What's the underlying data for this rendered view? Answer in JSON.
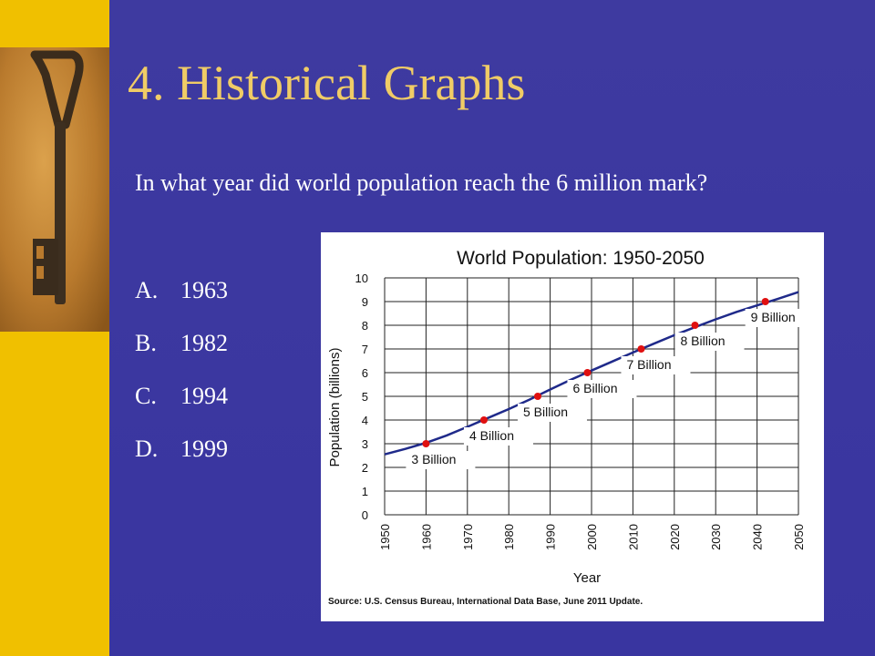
{
  "slide": {
    "title": "4.  Historical Graphs",
    "question": "In what year did world population reach the 6 million mark?",
    "choices": [
      {
        "letter": "A.",
        "text": "1963"
      },
      {
        "letter": "B.",
        "text": "1982"
      },
      {
        "letter": "C.",
        "text": "1994"
      },
      {
        "letter": "D.",
        "text": "1999"
      }
    ],
    "image": {
      "icon": "old-key-icon"
    }
  },
  "colors": {
    "background": "#3b37a0",
    "accent_strip": "#f0c000",
    "title": "#f0cc66",
    "series_line": "#1f2a8a",
    "milestone_marker": "#e01010"
  },
  "chart_data": {
    "type": "line",
    "title": "World Population: 1950-2050",
    "xlabel": "Year",
    "ylabel": "Population (billions)",
    "source": "Source: U.S. Census Bureau, International Data Base, June 2011 Update.",
    "xlim": [
      1950,
      2050
    ],
    "ylim": [
      0,
      10
    ],
    "x_ticks": [
      1950,
      1960,
      1970,
      1980,
      1990,
      2000,
      2010,
      2020,
      2030,
      2040,
      2050
    ],
    "y_ticks": [
      0,
      1,
      2,
      3,
      4,
      5,
      6,
      7,
      8,
      9,
      10
    ],
    "grid": true,
    "series": [
      {
        "x": [
          1950,
          1955,
          1960,
          1965,
          1970,
          1975,
          1980,
          1985,
          1990,
          1995,
          2000,
          2005,
          2010,
          2015,
          2020,
          2025,
          2030,
          2035,
          2040,
          2045,
          2050
        ],
        "values": [
          2.55,
          2.78,
          3.04,
          3.35,
          3.71,
          4.09,
          4.46,
          4.86,
          5.29,
          5.7,
          6.09,
          6.47,
          6.85,
          7.22,
          7.58,
          7.92,
          8.25,
          8.56,
          8.84,
          9.11,
          9.4
        ]
      }
    ],
    "milestones": [
      {
        "x": 1960,
        "y": 3,
        "label": "3 Billion"
      },
      {
        "x": 1974,
        "y": 4,
        "label": "4 Billion"
      },
      {
        "x": 1987,
        "y": 5,
        "label": "5 Billion"
      },
      {
        "x": 1999,
        "y": 6,
        "label": "6 Billion"
      },
      {
        "x": 2012,
        "y": 7,
        "label": "7 Billion"
      },
      {
        "x": 2025,
        "y": 8,
        "label": "8 Billion"
      },
      {
        "x": 2042,
        "y": 9,
        "label": "9 Billion"
      }
    ]
  }
}
